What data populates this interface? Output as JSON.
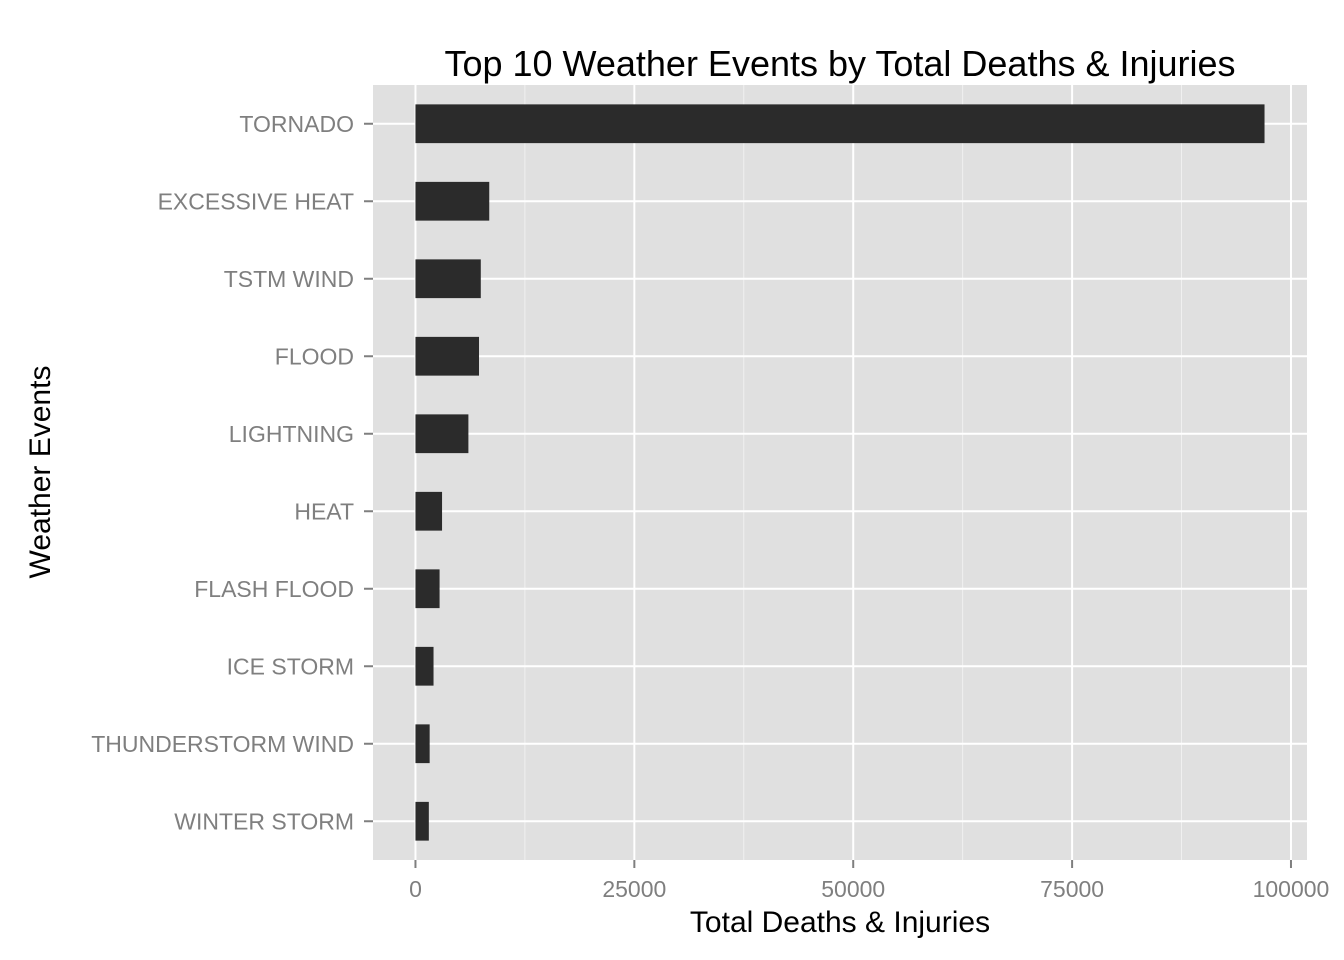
{
  "chart_data": {
    "type": "bar",
    "orientation": "horizontal",
    "title": "Top 10 Weather Events by Total Deaths & Injuries",
    "xlabel": "Total Deaths & Injuries",
    "ylabel": "Weather Events",
    "categories": [
      "TORNADO",
      "EXCESSIVE HEAT",
      "TSTM WIND",
      "FLOOD",
      "LIGHTNING",
      "HEAT",
      "FLASH FLOOD",
      "ICE STORM",
      "THUNDERSTORM WIND",
      "WINTER STORM"
    ],
    "values": [
      96979,
      8428,
      7461,
      7259,
      6046,
      3037,
      2755,
      2064,
      1621,
      1527
    ],
    "xlim": [
      -4850,
      101830
    ],
    "xticks": [
      0,
      25000,
      50000,
      75000,
      100000
    ],
    "xtick_labels": [
      "0",
      "25000",
      "50000",
      "75000",
      "100000"
    ],
    "grid": true,
    "legend": "none",
    "colors": {
      "panel_background": "#e0e0e0",
      "grid_major": "#ffffff",
      "grid_minor": "#f0f0f0",
      "bar_fill": "#2b2b2b",
      "tick_text": "#7f7f7f",
      "tick_mark": "#7f7f7f"
    }
  }
}
